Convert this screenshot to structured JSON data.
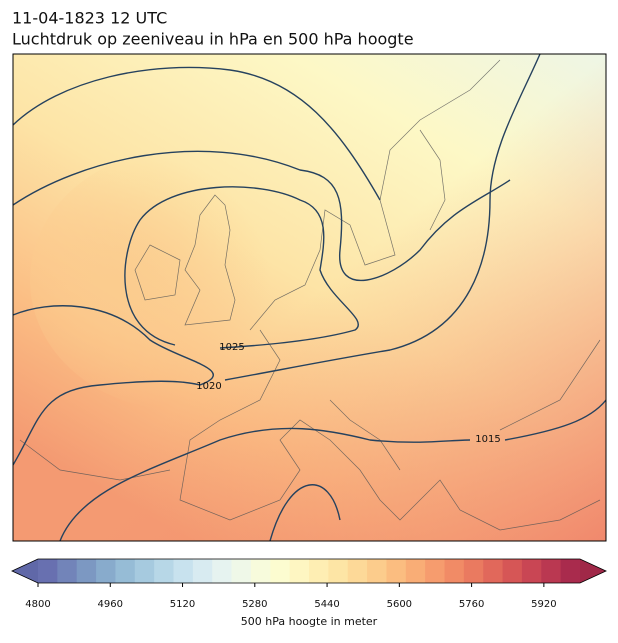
{
  "header": {
    "date": "11-04-1823 12 UTC",
    "title": "Luchtdruk op zeeniveau in hPa en 500 hPa hoogte"
  },
  "isobars": [
    {
      "value": 1025
    },
    {
      "value": 1020
    },
    {
      "value": 1015
    }
  ],
  "colorbar": {
    "label": "500 hPa hoogte in meter",
    "lim": [
      4800,
      6000
    ],
    "ticks": [
      4800,
      4960,
      5120,
      5280,
      5440,
      5600,
      5760,
      5920
    ],
    "colors": [
      "#6870b0",
      "#7284b9",
      "#7c98c2",
      "#88abcc",
      "#96bcd6",
      "#a6cadf",
      "#b7d7e7",
      "#c8e2ee",
      "#d8ebf1",
      "#e6f3f0",
      "#eff8e8",
      "#f7fbdc",
      "#fcfcd0",
      "#fef6c2",
      "#feeeb3",
      "#fde5a5",
      "#fdd998",
      "#fccc8c",
      "#fbbd80",
      "#f9ad76",
      "#f69c6e",
      "#f18b66",
      "#ea7a60",
      "#e1685b",
      "#d65656",
      "#c94654",
      "#ba3851",
      "#a92b4d"
    ],
    "under_color": "#6068a8",
    "over_color": "#a02848"
  }
}
